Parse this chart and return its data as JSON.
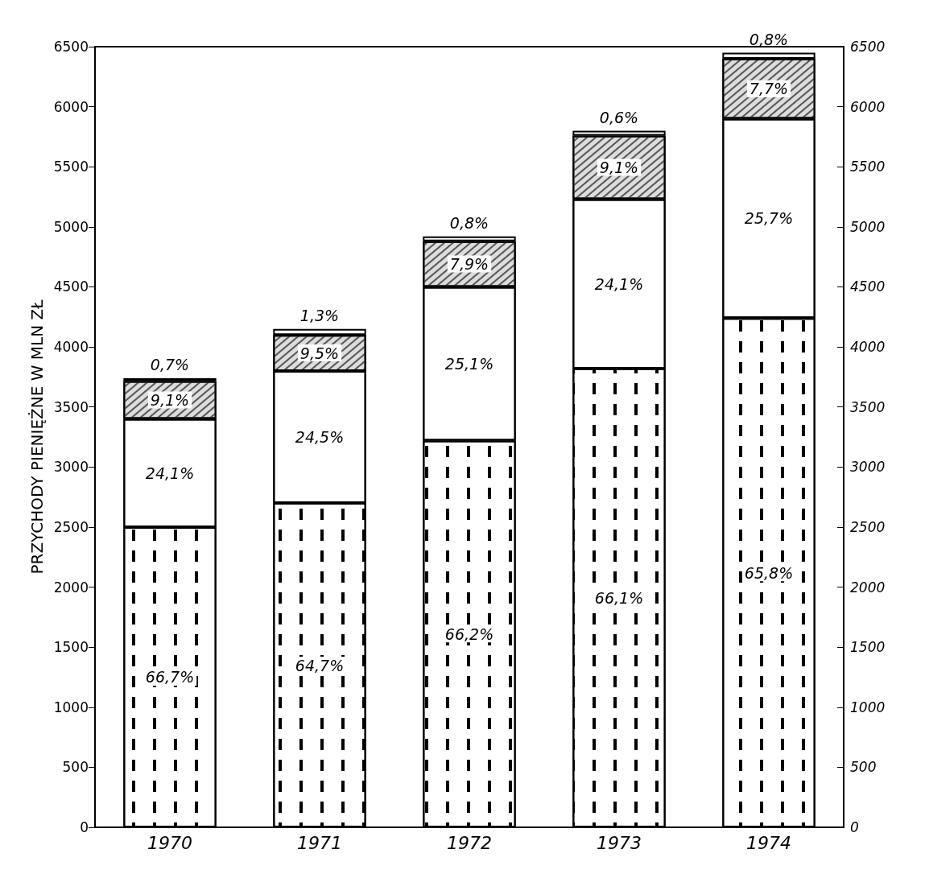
{
  "chart_data": {
    "type": "bar",
    "stacked": true,
    "ylabel": "PRZYCHODY PIENIĘŻNE W MLN ZŁ",
    "categories": [
      "1970",
      "1971",
      "1972",
      "1973",
      "1974"
    ],
    "series": [
      {
        "color": "#ffffff",
        "values": [
          2500,
          2700,
          3220,
          3820,
          4240
        ]
      },
      {
        "color": "#ffffff",
        "values": [
          900,
          1100,
          1280,
          1410,
          1660
        ]
      },
      {
        "color": "#dddddd",
        "values": [
          315,
          300,
          380,
          530,
          500
        ]
      },
      {
        "color": "#ffffff",
        "values": [
          25,
          50,
          40,
          40,
          50
        ]
      }
    ],
    "annotations": [
      "66,7%",
      "24,1%",
      "9,1%",
      "0,7%",
      "64,7%",
      "24,5%",
      "9,5%",
      "1,3%",
      "66,2%",
      "25,1%",
      "7,9%",
      "0,8%",
      "66,1%",
      "24,1%",
      "9,1%",
      "0,6%",
      "65,8%",
      "25,7%",
      "7,7%",
      "0,8%"
    ],
    "ylim": [
      0,
      6500
    ],
    "yticks": [
      0,
      500,
      1000,
      1500,
      2000,
      2500,
      3000,
      3500,
      4000,
      4500,
      5000,
      5500,
      6000,
      6500
    ],
    "y2lim": [
      0,
      6500
    ],
    "y2ticks": [
      0,
      500,
      1000,
      1500,
      2000,
      2500,
      3000,
      3500,
      4000,
      4500,
      5000,
      5500,
      6000,
      6500
    ],
    "grid": false
  }
}
